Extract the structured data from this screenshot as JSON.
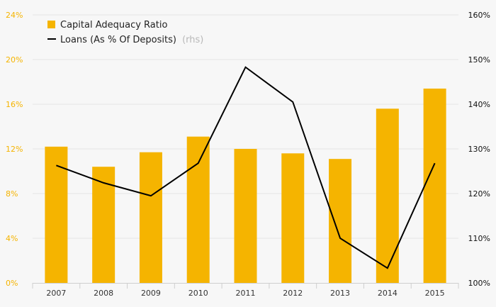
{
  "chart_data": {
    "type": "bar+line",
    "categories": [
      "2007",
      "2008",
      "2009",
      "2010",
      "2011",
      "2012",
      "2013",
      "2014",
      "2015"
    ],
    "series": [
      {
        "name": "Capital Adequacy Ratio",
        "type": "bar",
        "axis": "left",
        "values": [
          12.2,
          10.4,
          11.7,
          13.1,
          12.0,
          11.6,
          11.1,
          15.6,
          17.4
        ]
      },
      {
        "name": "Loans (As % Of Deposits)",
        "name_note": "(rhs)",
        "type": "line",
        "axis": "right",
        "values": [
          126.3,
          122.4,
          119.5,
          126.8,
          148.3,
          140.5,
          110.0,
          103.3,
          126.8
        ]
      }
    ],
    "y_left": {
      "min": 0,
      "max": 24,
      "ticks": [
        "0%",
        "4%",
        "8%",
        "12%",
        "16%",
        "20%",
        "24%"
      ]
    },
    "y_right": {
      "min": 100,
      "max": 160,
      "ticks": [
        "100%",
        "110%",
        "120%",
        "130%",
        "140%",
        "150%",
        "160%"
      ]
    },
    "grid": true,
    "legend_position": "top-left",
    "colors": {
      "bar": "#f5b400",
      "line": "#000000",
      "left_axis_text": "#f5b400",
      "right_axis_text": "#111111"
    }
  }
}
